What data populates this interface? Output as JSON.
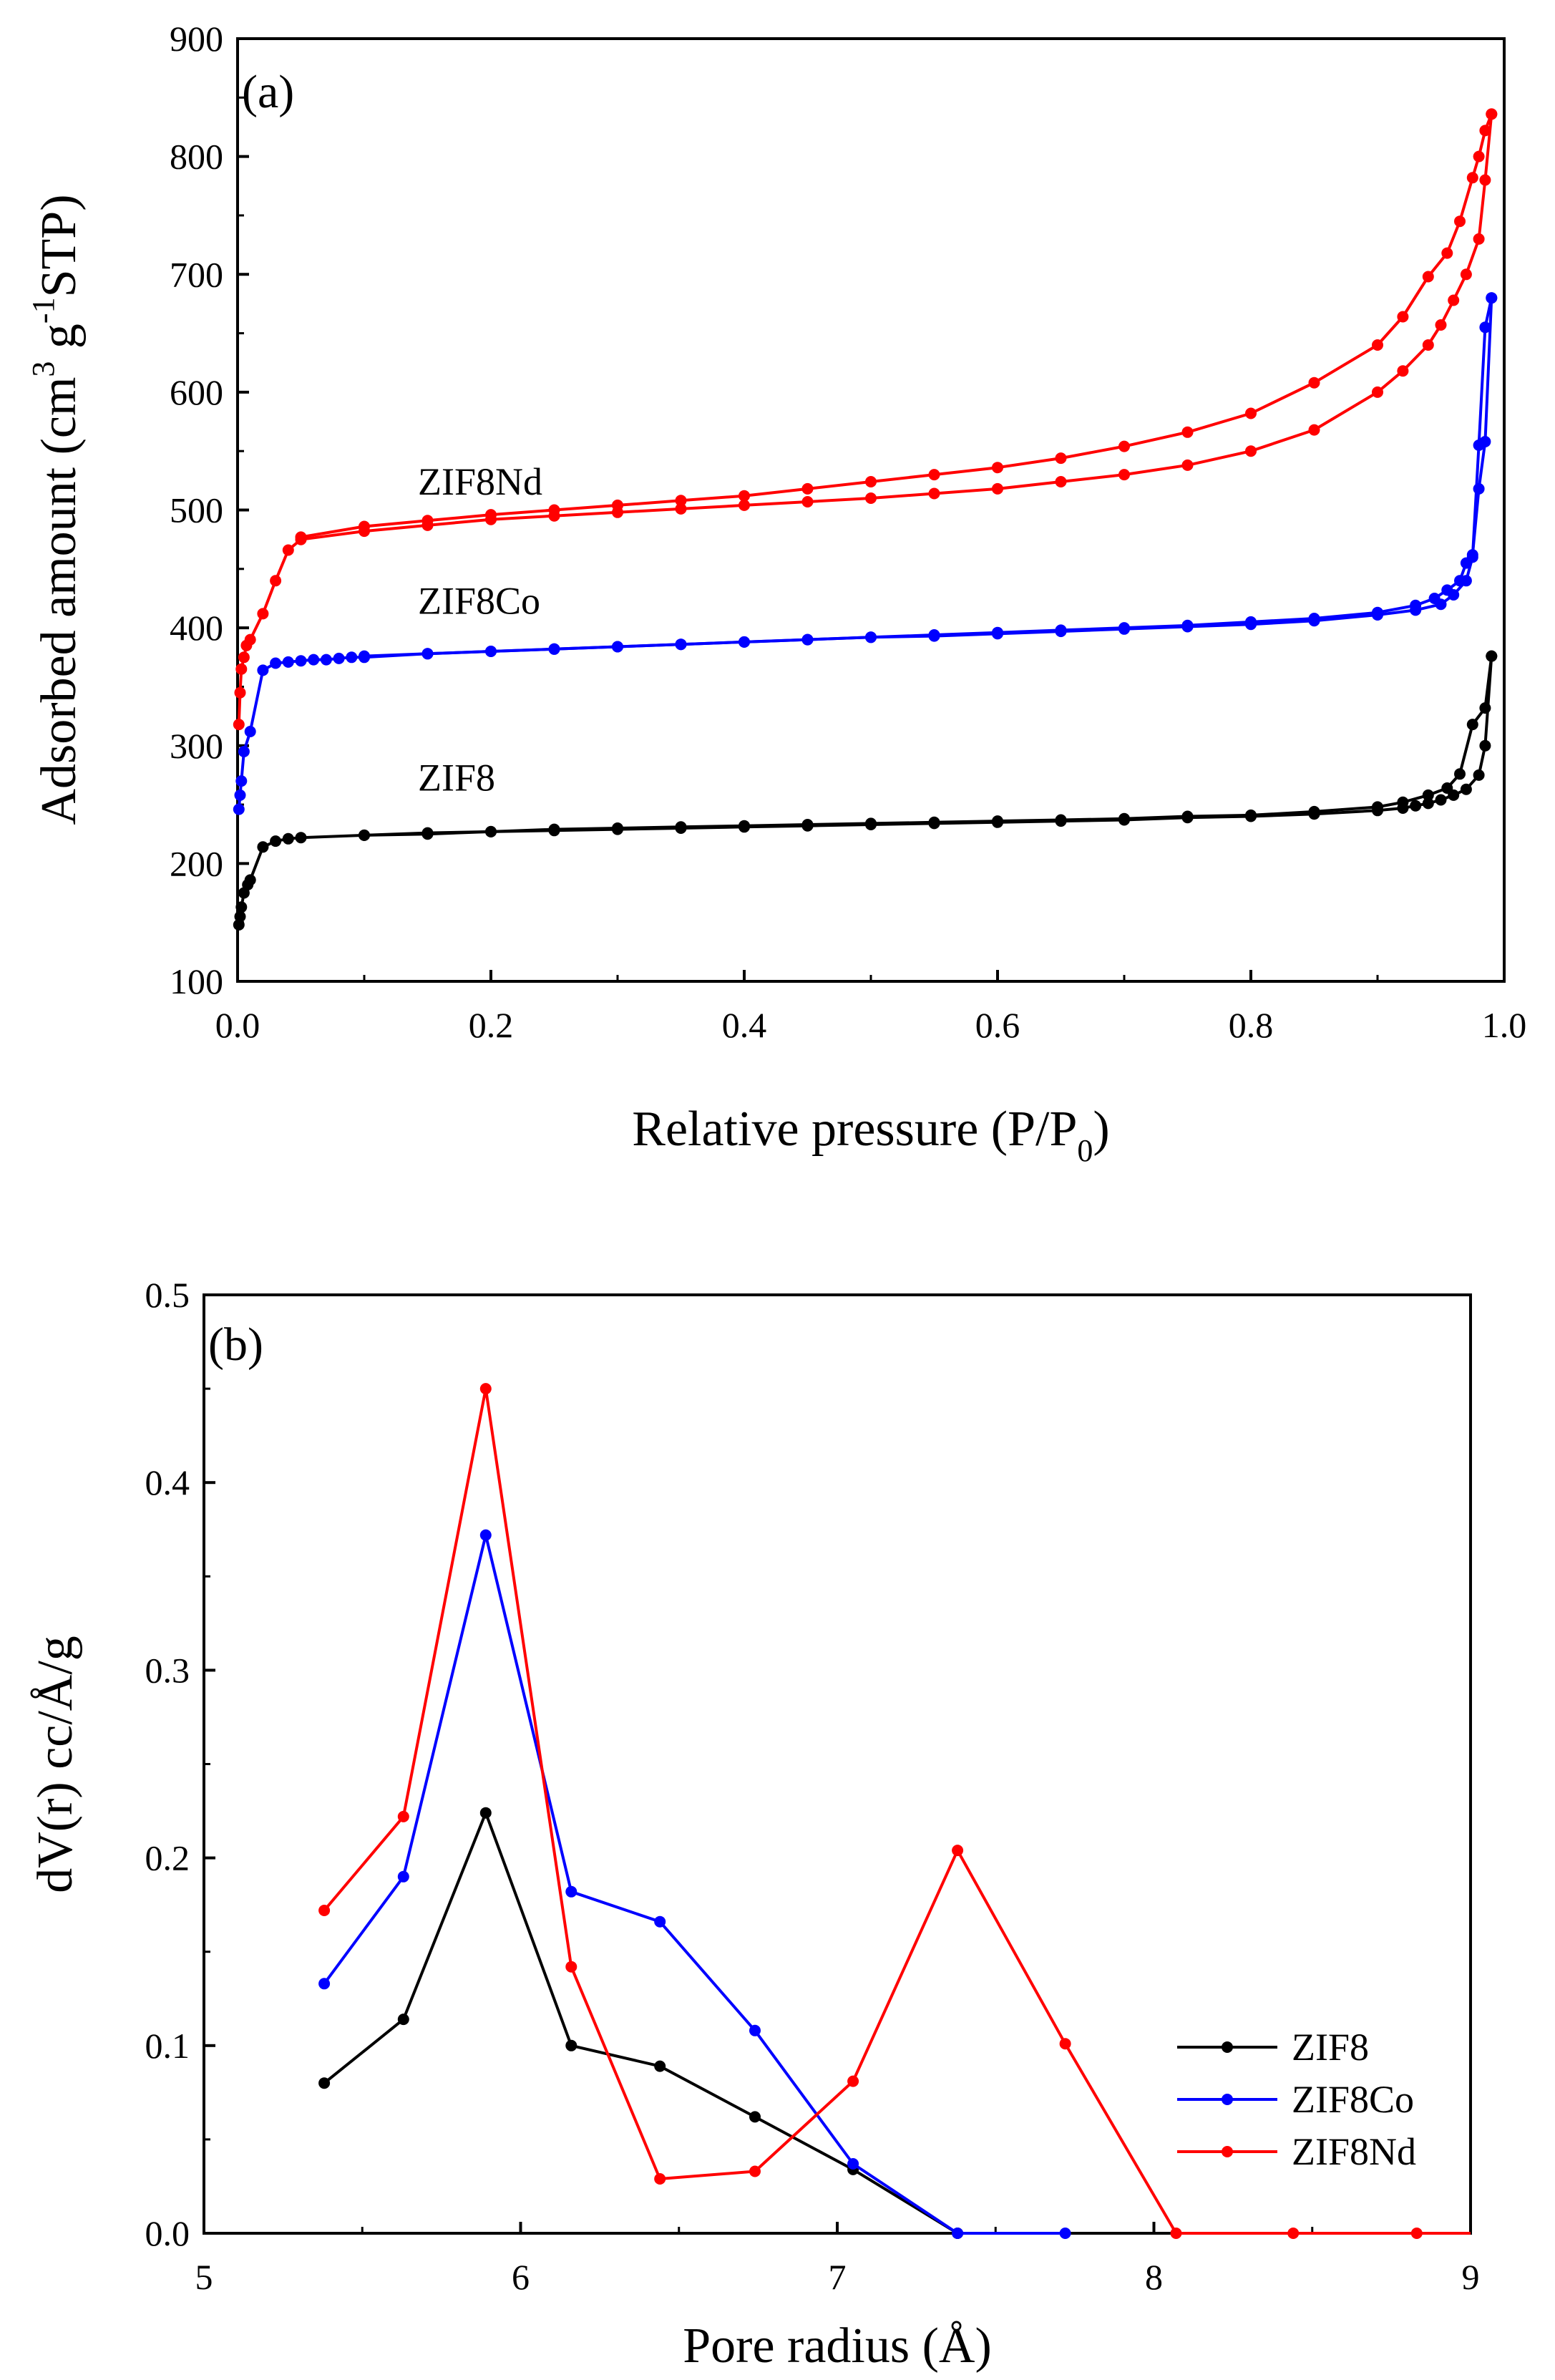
{
  "chart_data": [
    {
      "panel_label": "(a)",
      "type": "line",
      "xlabel_main": "Relative pressure (P/P",
      "xlabel_sub": "0",
      "xlabel_close": ")",
      "ylabel_parts": [
        "Adsorbed amount (cm",
        "3",
        " g",
        "-1",
        "STP)"
      ],
      "xlim": [
        0.0,
        1.0
      ],
      "ylim": [
        100,
        900
      ],
      "xticks": [
        "0.0",
        "0.2",
        "0.4",
        "0.6",
        "0.8",
        "1.0"
      ],
      "xtick_values": [
        0.0,
        0.2,
        0.4,
        0.6,
        0.8,
        1.0
      ],
      "yticks": [
        "100",
        "200",
        "300",
        "400",
        "500",
        "600",
        "700",
        "800",
        "900"
      ],
      "ytick_values": [
        100,
        200,
        300,
        400,
        500,
        600,
        700,
        800,
        900
      ],
      "series": [
        {
          "name": "ZIF8",
          "label": "ZIF8",
          "color": "#000000",
          "label_anchor": [
            0.1,
            262
          ],
          "branches": [
            {
              "x": [
                0.001,
                0.002,
                0.003,
                0.005,
                0.008,
                0.01,
                0.02,
                0.03,
                0.04,
                0.05,
                0.1,
                0.15,
                0.2,
                0.25,
                0.3,
                0.35,
                0.4,
                0.45,
                0.5,
                0.55,
                0.6,
                0.65,
                0.7,
                0.75,
                0.8,
                0.85,
                0.9,
                0.92,
                0.93,
                0.94,
                0.95,
                0.96,
                0.97,
                0.98,
                0.985,
                0.99
              ],
              "y": [
                148,
                155,
                163,
                175,
                182,
                186,
                214,
                219,
                221,
                222,
                224,
                225,
                227,
                228,
                229,
                230,
                231,
                232,
                233,
                234,
                235,
                236,
                237,
                239,
                240,
                242,
                245,
                247,
                249,
                251,
                254,
                258,
                263,
                275,
                300,
                376
              ]
            },
            {
              "x": [
                0.99,
                0.985,
                0.975,
                0.965,
                0.955,
                0.94,
                0.92,
                0.9,
                0.85,
                0.8,
                0.75,
                0.7,
                0.65,
                0.6,
                0.55,
                0.5,
                0.45,
                0.4,
                0.35,
                0.3,
                0.25,
                0.2,
                0.15,
                0.1
              ],
              "y": [
                376,
                332,
                318,
                276,
                264,
                258,
                252,
                248,
                244,
                241,
                240,
                238,
                237,
                236,
                235,
                234,
                233,
                232,
                231,
                230,
                229,
                227,
                226,
                224
              ]
            }
          ]
        },
        {
          "name": "ZIF8Co",
          "label": "ZIF8Co",
          "color": "#0000ff",
          "label_anchor": [
            0.1,
            412
          ],
          "branches": [
            {
              "x": [
                0.001,
                0.002,
                0.003,
                0.005,
                0.01,
                0.02,
                0.03,
                0.04,
                0.05,
                0.06,
                0.07,
                0.08,
                0.09,
                0.1,
                0.15,
                0.2,
                0.25,
                0.3,
                0.35,
                0.4,
                0.45,
                0.5,
                0.55,
                0.6,
                0.65,
                0.7,
                0.75,
                0.8,
                0.85,
                0.9,
                0.93,
                0.95,
                0.96,
                0.97,
                0.975,
                0.98,
                0.985,
                0.99
              ],
              "y": [
                246,
                258,
                270,
                295,
                312,
                364,
                370,
                371,
                372,
                373,
                373,
                374,
                375,
                375,
                378,
                380,
                382,
                384,
                386,
                388,
                390,
                392,
                393,
                395,
                397,
                399,
                401,
                403,
                406,
                411,
                415,
                420,
                428,
                440,
                460,
                555,
                655,
                680
              ]
            },
            {
              "x": [
                0.99,
                0.985,
                0.98,
                0.975,
                0.97,
                0.965,
                0.955,
                0.945,
                0.93,
                0.9,
                0.85,
                0.8,
                0.75,
                0.7,
                0.65,
                0.6,
                0.55,
                0.5,
                0.45,
                0.4,
                0.35,
                0.3,
                0.25,
                0.2,
                0.15,
                0.1
              ],
              "y": [
                680,
                558,
                518,
                462,
                455,
                440,
                432,
                425,
                419,
                413,
                408,
                405,
                402,
                400,
                398,
                396,
                394,
                392,
                390,
                388,
                386,
                384,
                382,
                380,
                378,
                376
              ]
            }
          ]
        },
        {
          "name": "ZIF8Nd",
          "label": "ZIF8Nd",
          "color": "#ff0000",
          "label_anchor": [
            0.1,
            513
          ],
          "branches": [
            {
              "x": [
                0.001,
                0.002,
                0.003,
                0.005,
                0.007,
                0.01,
                0.02,
                0.03,
                0.04,
                0.05,
                0.1,
                0.15,
                0.2,
                0.25,
                0.3,
                0.35,
                0.4,
                0.45,
                0.5,
                0.55,
                0.6,
                0.65,
                0.7,
                0.75,
                0.8,
                0.85,
                0.9,
                0.92,
                0.94,
                0.95,
                0.96,
                0.97,
                0.98,
                0.985,
                0.99
              ],
              "y": [
                318,
                345,
                365,
                375,
                385,
                390,
                412,
                440,
                466,
                475,
                482,
                487,
                492,
                495,
                498,
                501,
                504,
                507,
                510,
                514,
                518,
                524,
                530,
                538,
                550,
                568,
                600,
                618,
                640,
                657,
                678,
                700,
                730,
                780,
                836
              ]
            },
            {
              "x": [
                0.99,
                0.985,
                0.98,
                0.975,
                0.965,
                0.955,
                0.94,
                0.92,
                0.9,
                0.85,
                0.8,
                0.75,
                0.7,
                0.65,
                0.6,
                0.55,
                0.5,
                0.45,
                0.4,
                0.35,
                0.3,
                0.25,
                0.2,
                0.15,
                0.1,
                0.05
              ],
              "y": [
                836,
                822,
                800,
                782,
                745,
                718,
                698,
                664,
                640,
                608,
                582,
                566,
                554,
                544,
                536,
                530,
                524,
                518,
                512,
                508,
                504,
                500,
                496,
                491,
                486,
                477
              ]
            }
          ]
        }
      ]
    },
    {
      "panel_label": "(b)",
      "type": "line",
      "xlabel": "Pore radius (Å)",
      "ylabel": "dV(r) cc/Å/g",
      "xlim": [
        5,
        9
      ],
      "ylim": [
        0.0,
        0.5
      ],
      "xticks": [
        "5",
        "6",
        "7",
        "8",
        "9"
      ],
      "xtick_values": [
        5,
        6,
        7,
        8,
        9
      ],
      "yticks": [
        "0.0",
        "0.1",
        "0.2",
        "0.3",
        "0.4",
        "0.5"
      ],
      "ytick_values": [
        0.0,
        0.1,
        0.2,
        0.3,
        0.4,
        0.5
      ],
      "legend": "bottom-right",
      "series": [
        {
          "name": "ZIF8",
          "color": "#000000",
          "x": [
            5.38,
            5.63,
            5.89,
            6.16,
            6.44,
            6.74,
            7.05,
            7.38
          ],
          "y": [
            0.08,
            0.114,
            0.224,
            0.1,
            0.089,
            0.062,
            0.034,
            0.0
          ]
        },
        {
          "name": "ZIF8Co",
          "color": "#0000ff",
          "x": [
            5.38,
            5.63,
            5.89,
            6.16,
            6.44,
            6.74,
            7.05,
            7.38,
            7.72
          ],
          "y": [
            0.133,
            0.19,
            0.372,
            0.182,
            0.166,
            0.108,
            0.037,
            0.0,
            0.0
          ]
        },
        {
          "name": "ZIF8Nd",
          "color": "#ff0000",
          "x": [
            5.38,
            5.63,
            5.89,
            6.16,
            6.44,
            6.74,
            7.05,
            7.38,
            7.72,
            8.07,
            8.44,
            8.83,
            9.0
          ],
          "y": [
            0.172,
            0.222,
            0.45,
            0.142,
            0.029,
            0.033,
            0.081,
            0.204,
            0.101,
            0.0,
            0.0,
            0.0,
            0.0
          ],
          "markers_last": 12
        }
      ]
    }
  ]
}
